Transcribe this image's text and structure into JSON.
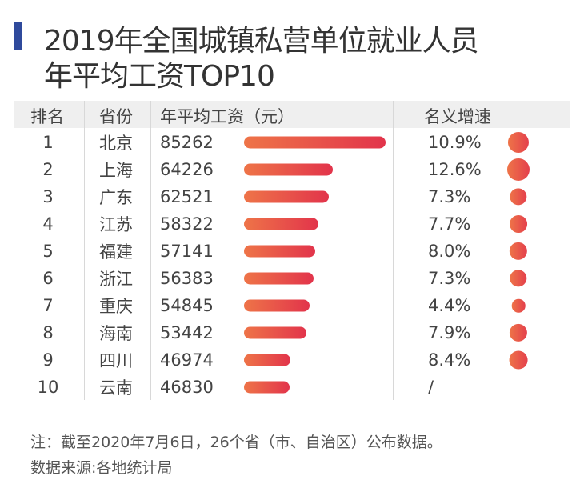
{
  "title_line1": "2019年全国城镇私营单位就业人员",
  "title_line2": "年平均工资TOP10",
  "chart_data": {
    "type": "table",
    "title": "2019年全国城镇私营单位就业人员年平均工资TOP10",
    "columns": [
      "排名",
      "省份",
      "年平均工资（元）",
      "名义增速"
    ],
    "rows": [
      {
        "rank": "1",
        "province": "北京",
        "wage": 85262,
        "growth": "10.9%",
        "growth_value": 10.9
      },
      {
        "rank": "2",
        "province": "上海",
        "wage": 64226,
        "growth": "12.6%",
        "growth_value": 12.6
      },
      {
        "rank": "3",
        "province": "广东",
        "wage": 62521,
        "growth": "7.3%",
        "growth_value": 7.3
      },
      {
        "rank": "4",
        "province": "江苏",
        "wage": 58322,
        "growth": "7.7%",
        "growth_value": 7.7
      },
      {
        "rank": "5",
        "province": "福建",
        "wage": 57141,
        "growth": "8.0%",
        "growth_value": 8.0
      },
      {
        "rank": "6",
        "province": "浙江",
        "wage": 56383,
        "growth": "7.3%",
        "growth_value": 7.3
      },
      {
        "rank": "7",
        "province": "重庆",
        "wage": 54845,
        "growth": "4.4%",
        "growth_value": 4.4
      },
      {
        "rank": "8",
        "province": "海南",
        "wage": 53442,
        "growth": "7.9%",
        "growth_value": 7.9
      },
      {
        "rank": "9",
        "province": "四川",
        "wage": 46974,
        "growth": "8.4%",
        "growth_value": 8.4
      },
      {
        "rank": "10",
        "province": "云南",
        "wage": 46830,
        "growth": "/",
        "growth_value": null
      }
    ],
    "colors": {
      "bar_start": "#ee7448",
      "bar_end": "#e2344b",
      "accent": "#2f4a9c",
      "header_bg": "#efefef"
    }
  },
  "footer": {
    "note": "注：截至2020年7月6日，26个省（市、自治区）公布数据。",
    "source": "数据来源:各地统计局"
  }
}
